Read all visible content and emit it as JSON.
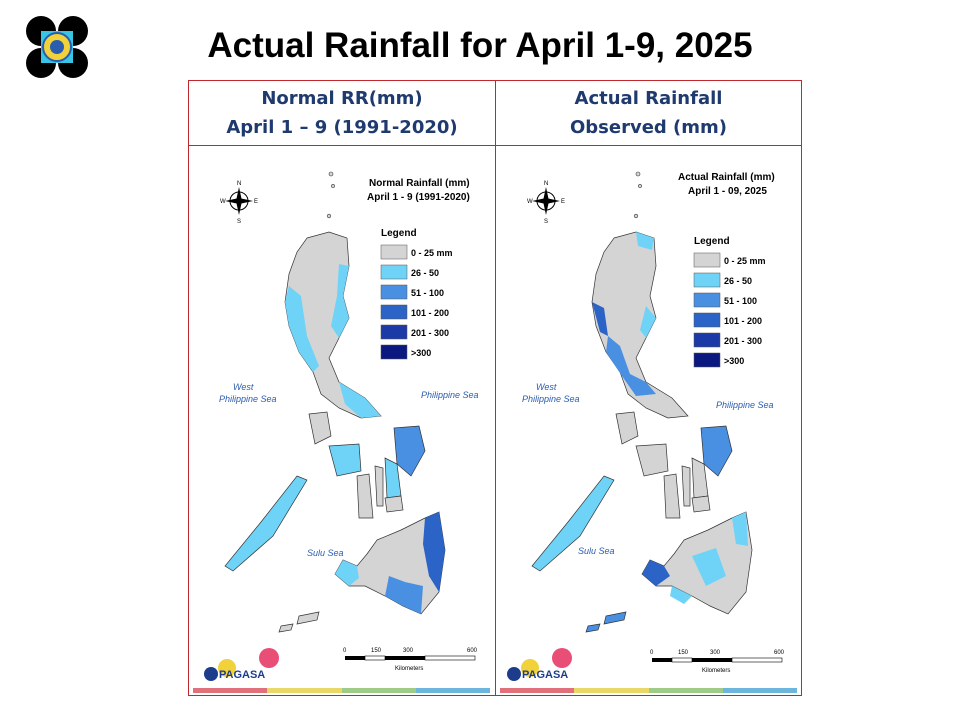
{
  "slide": {
    "title": "Actual Rainfall for April 1-9, 2025"
  },
  "colors": {
    "frame": "#c0282d",
    "header_text": "#1f3a6e",
    "land": "#d4d4d4",
    "c26_50": "#6fd3f7",
    "c51_100": "#4a90e2",
    "c101_200": "#2b63c7",
    "c201_300": "#1c39a8",
    "c300": "#0b1880",
    "footer_strip": [
      "#e0707a",
      "#e8d86a",
      "#9ecc88",
      "#6cb6de"
    ]
  },
  "panels": [
    {
      "header_line1": "Normal RR(mm)",
      "header_line2": "April 1 – 9 (1991-2020)",
      "map_title_line1": "Normal Rainfall (mm)",
      "map_title_line2": "April 1 - 9 (1991-2020)",
      "legend_title": "Legend",
      "legend": [
        "0 - 25 mm",
        "26 - 50",
        "51 - 100",
        "101 - 200",
        "201 - 300",
        ">300"
      ],
      "seas": {
        "west_line1": "West",
        "west_line2": "Philippine Sea",
        "east": "Philippine Sea",
        "south": "Sulu Sea"
      },
      "scale": {
        "ticks": [
          "0",
          "150",
          "300",
          "600"
        ],
        "unit": "Kilometers"
      },
      "compass": {
        "n": "N",
        "s": "S",
        "e": "E",
        "w": "W"
      },
      "logo_text": "PAGASA"
    },
    {
      "header_line1": "Actual Rainfall",
      "header_line2": "Observed (mm)",
      "map_title_line1": "Actual Rainfall (mm)",
      "map_title_line2": "April 1 - 09, 2025",
      "legend_title": "Legend",
      "legend": [
        "0 - 25 mm",
        "26 - 50",
        "51 - 100",
        "101 - 200",
        "201 - 300",
        ">300"
      ],
      "seas": {
        "west_line1": "West",
        "west_line2": "Philippine Sea",
        "east": "Philippine Sea",
        "south": "Sulu Sea"
      },
      "scale": {
        "ticks": [
          "0",
          "150",
          "300",
          "600"
        ],
        "unit": "Kilometers"
      },
      "compass": {
        "n": "N",
        "s": "S",
        "e": "E",
        "w": "W"
      },
      "logo_text": "PAGASA"
    }
  ]
}
